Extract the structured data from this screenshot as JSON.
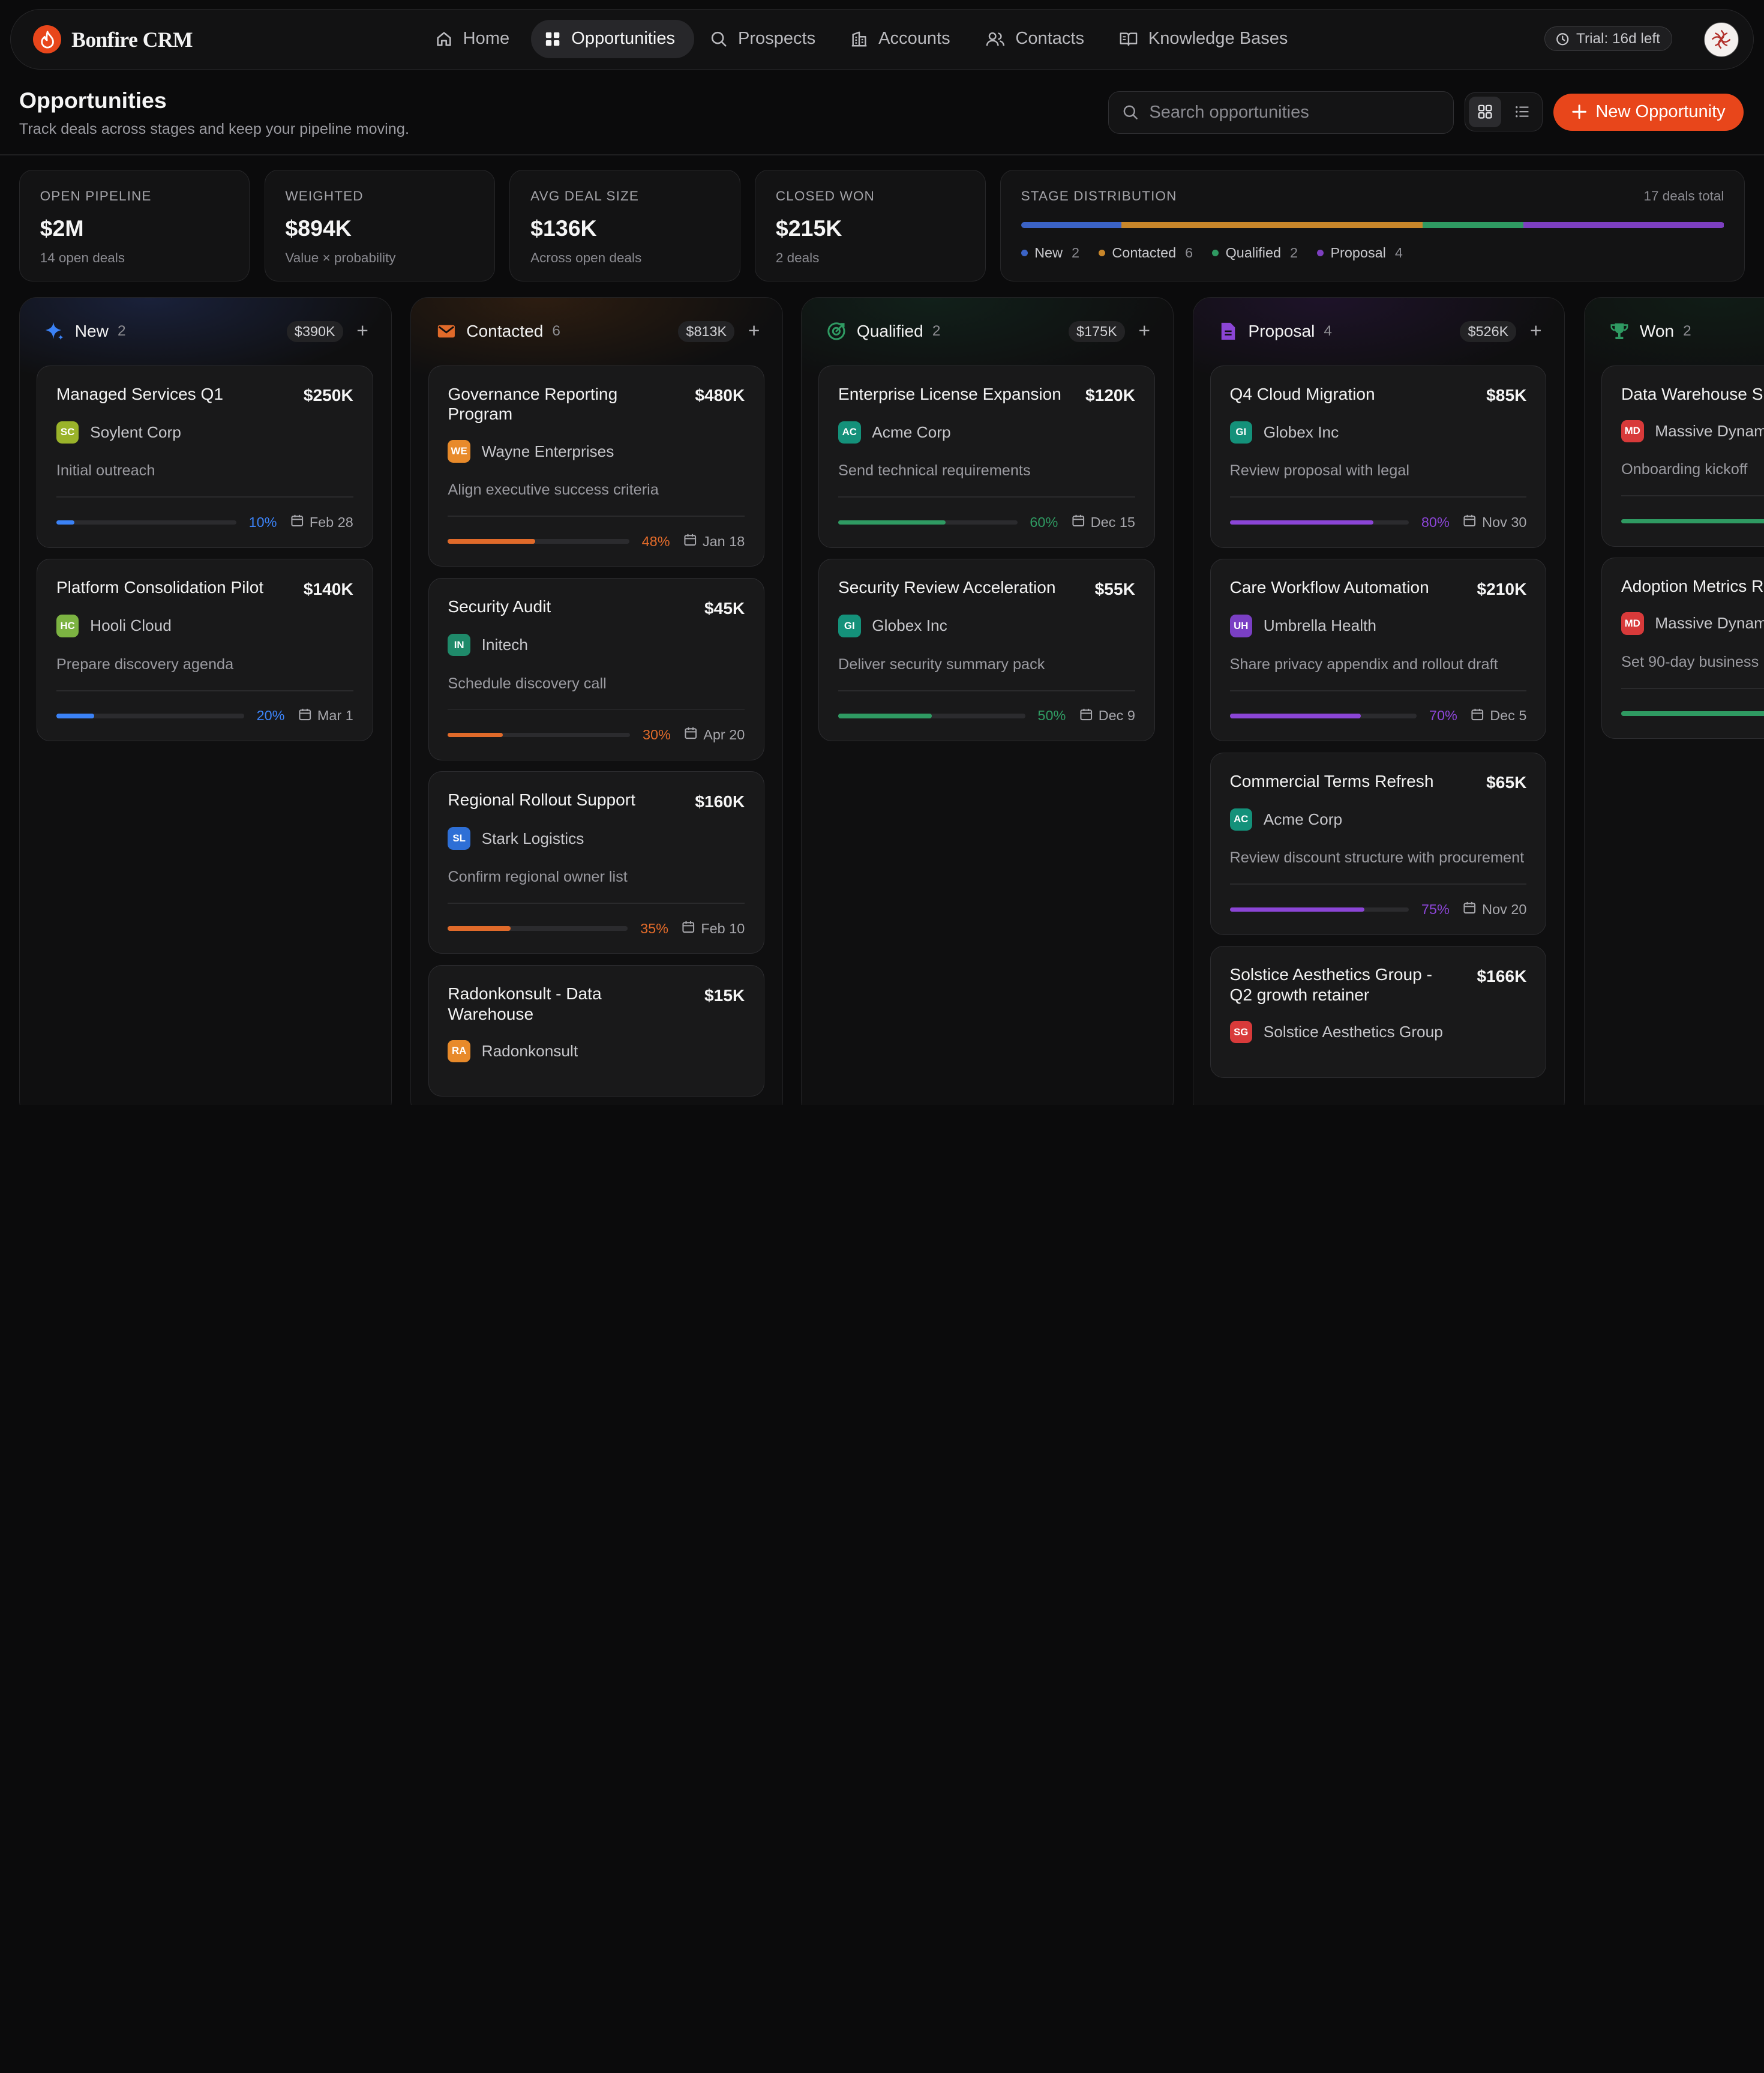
{
  "app": {
    "brand": "Bonfire CRM",
    "nav": [
      {
        "label": "Home",
        "icon": "home-icon"
      },
      {
        "label": "Opportunities",
        "icon": "grid-icon",
        "active": true
      },
      {
        "label": "Prospects",
        "icon": "search-icon"
      },
      {
        "label": "Accounts",
        "icon": "building-icon"
      },
      {
        "label": "Contacts",
        "icon": "users-icon"
      },
      {
        "label": "Knowledge Bases",
        "icon": "book-icon"
      }
    ],
    "trial": "Trial: 16d left"
  },
  "header": {
    "title": "Opportunities",
    "subtitle": "Track deals across stages and keep your pipeline moving.",
    "search_placeholder": "Search opportunities",
    "new_button": "New Opportunity"
  },
  "stats": [
    {
      "label": "OPEN PIPELINE",
      "value": "$2M",
      "sub": "14 open deals"
    },
    {
      "label": "WEIGHTED",
      "value": "$894K",
      "sub": "Value × probability"
    },
    {
      "label": "AVG DEAL SIZE",
      "value": "$136K",
      "sub": "Across open deals"
    },
    {
      "label": "CLOSED WON",
      "value": "$215K",
      "sub": "2 deals"
    }
  ],
  "distribution": {
    "label": "STAGE DISTRIBUTION",
    "total": "17 deals total",
    "stages": [
      {
        "name": "New",
        "count": 2,
        "color": "#3b63c6"
      },
      {
        "name": "Contacted",
        "count": 6,
        "color": "#c8862a"
      },
      {
        "name": "Qualified",
        "count": 2,
        "color": "#2f9a62"
      },
      {
        "name": "Proposal",
        "count": 4,
        "color": "#7d3fc0"
      }
    ]
  },
  "columns": [
    {
      "title": "New",
      "count": "2",
      "total": "$390K",
      "color": "#3b82f6",
      "icon": "sparkle-icon",
      "glow": "#2a3c7a",
      "cards": [
        {
          "title": "Managed Services Q1",
          "amount": "$250K",
          "initials": "SC",
          "badge_color": "#9ab32a",
          "company": "Soylent Corp",
          "note": "Initial outreach",
          "progress": 10,
          "date": "Feb 28"
        },
        {
          "title": "Platform Consolidation Pilot",
          "amount": "$140K",
          "initials": "HC",
          "badge_color": "#7cb342",
          "company": "Hooli Cloud",
          "note": "Prepare discovery agenda",
          "progress": 20,
          "date": "Mar 1"
        }
      ]
    },
    {
      "title": "Contacted",
      "count": "6",
      "total": "$813K",
      "color": "#e06a2a",
      "icon": "mail-icon",
      "glow": "#5a3212",
      "cards": [
        {
          "title": "Governance Reporting Program",
          "amount": "$480K",
          "initials": "WE",
          "badge_color": "#e88a2a",
          "company": "Wayne Enterprises",
          "note": "Align executive success criteria",
          "progress": 48,
          "date": "Jan 18"
        },
        {
          "title": "Security Audit",
          "amount": "$45K",
          "initials": "IN",
          "badge_color": "#1f8a6a",
          "company": "Initech",
          "note": "Schedule discovery call",
          "progress": 30,
          "date": "Apr 20"
        },
        {
          "title": "Regional Rollout Support",
          "amount": "$160K",
          "initials": "SL",
          "badge_color": "#2e6fd6",
          "company": "Stark Logistics",
          "note": "Confirm regional owner list",
          "progress": 35,
          "date": "Feb 10"
        },
        {
          "title": "Radonkonsult - Data Warehouse",
          "amount": "$15K",
          "initials": "RA",
          "badge_color": "#e88a2a",
          "company": "Radonkonsult",
          "note": "",
          "progress": 0,
          "date": ""
        }
      ]
    },
    {
      "title": "Qualified",
      "count": "2",
      "total": "$175K",
      "color": "#2f9a62",
      "icon": "target-icon",
      "glow": "#153a29",
      "cards": [
        {
          "title": "Enterprise License Expansion",
          "amount": "$120K",
          "initials": "AC",
          "badge_color": "#14917a",
          "company": "Acme Corp",
          "note": "Send technical requirements",
          "progress": 60,
          "date": "Dec 15"
        },
        {
          "title": "Security Review Acceleration",
          "amount": "$55K",
          "initials": "GI",
          "badge_color": "#14917a",
          "company": "Globex Inc",
          "note": "Deliver security summary pack",
          "progress": 50,
          "date": "Dec 9"
        }
      ]
    },
    {
      "title": "Proposal",
      "count": "4",
      "total": "$526K",
      "color": "#8b45d6",
      "icon": "document-icon",
      "glow": "#34184f",
      "cards": [
        {
          "title": "Q4 Cloud Migration",
          "amount": "$85K",
          "initials": "GI",
          "badge_color": "#14917a",
          "company": "Globex Inc",
          "note": "Review proposal with legal",
          "progress": 80,
          "date": "Nov 30"
        },
        {
          "title": "Care Workflow Automation",
          "amount": "$210K",
          "initials": "UH",
          "badge_color": "#7a3fc4",
          "company": "Umbrella Health",
          "note": "Share privacy appendix and rollout draft",
          "progress": 70,
          "date": "Dec 5"
        },
        {
          "title": "Commercial Terms Refresh",
          "amount": "$65K",
          "initials": "AC",
          "badge_color": "#14917a",
          "company": "Acme Corp",
          "note": "Review discount structure with procurement",
          "progress": 75,
          "date": "Nov 20"
        },
        {
          "title": "Solstice Aesthetics Group - Q2 growth retainer",
          "amount": "$166K",
          "initials": "SG",
          "badge_color": "#d83a3a",
          "company": "Solstice Aesthetics Group",
          "note": "",
          "progress": 0,
          "date": ""
        }
      ]
    },
    {
      "title": "Won",
      "count": "2",
      "total": "",
      "color": "#2f9a62",
      "icon": "trophy-icon",
      "glow": "#12301f",
      "cards": [
        {
          "title": "Data Warehouse S",
          "amount": "",
          "initials": "MD",
          "badge_color": "#d83a3a",
          "company": "Massive Dynam",
          "note": "Onboarding kickoff",
          "progress": 100,
          "date": ""
        },
        {
          "title": "Adoption Metrics R",
          "amount": "",
          "initials": "MD",
          "badge_color": "#d83a3a",
          "company": "Massive Dynam",
          "note": "Set 90-day business",
          "progress": 100,
          "date": ""
        }
      ]
    }
  ]
}
